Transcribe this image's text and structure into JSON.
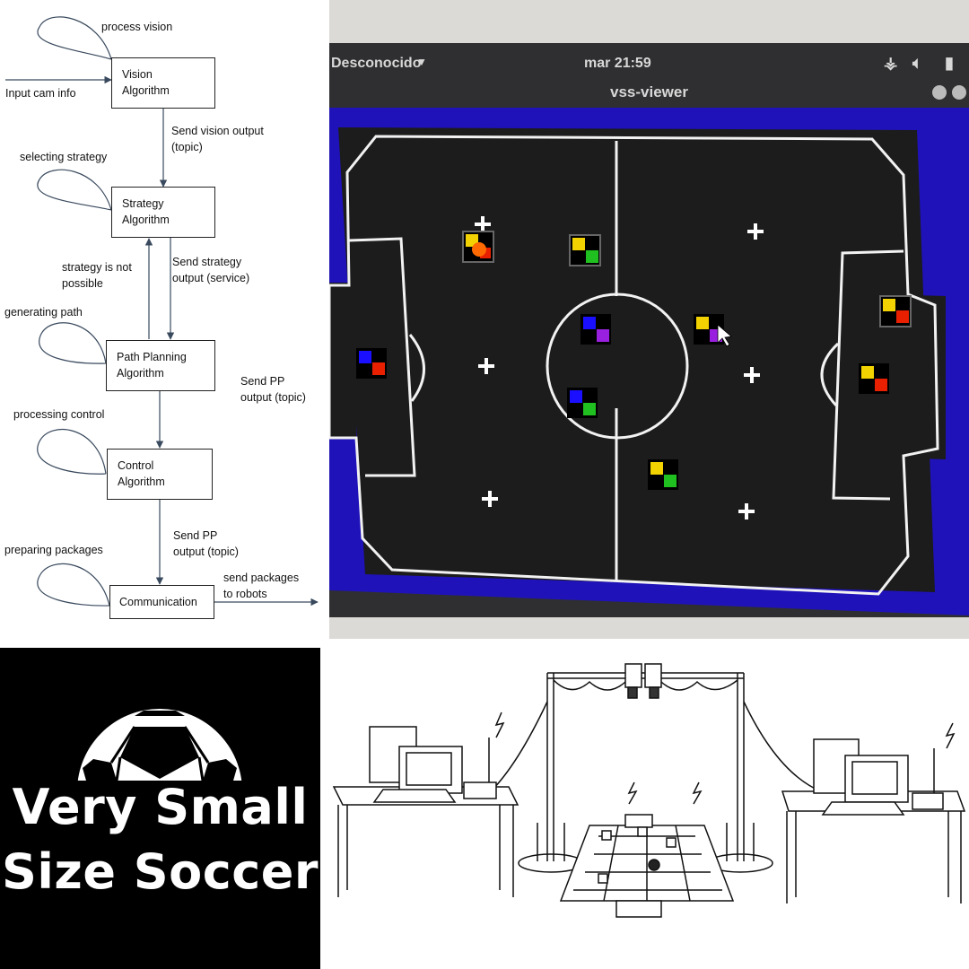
{
  "flowchart": {
    "boxes": {
      "vision": "Vision\nAlgorithm",
      "strategy": "Strategy\nAlgorithm",
      "path": "Path Planning\nAlgorithm",
      "control": "Control\nAlgorithm",
      "comm": "Communication"
    },
    "loops": {
      "vision": "process vision",
      "strategy": "selecting strategy",
      "path": "generating path",
      "control": "processing control",
      "comm": "preparing packages"
    },
    "edges": {
      "input": "Input cam info",
      "vision_out": "Send vision output\n(topic)",
      "strategy_out": "Send strategy\noutput (service)",
      "not_possible": "strategy is not\npossible",
      "pp_out_1": "Send PP\noutput (topic)",
      "pp_out_2": "Send PP\noutput (topic)",
      "packages": "send packages\nto robots"
    }
  },
  "viewer": {
    "menu": "Desconocido",
    "clock": "mar 21:59",
    "window_title": "vss-viewer",
    "colors": {
      "field": "#1b1b1b",
      "bg": "#1e10b8",
      "topbar": "#3a3a3a",
      "yellow": "#f2d200",
      "red": "#e82000",
      "green": "#20c020",
      "blue": "#1a10ff",
      "purple": "#9a20e0",
      "ball": "#ff6a00"
    }
  },
  "brand": {
    "line1": "Very Small",
    "line2": "Size Soccer"
  },
  "setup": {
    "caption": "Illustration of Very Small Size Soccer setup with two computers, overhead cameras and the playing field"
  }
}
